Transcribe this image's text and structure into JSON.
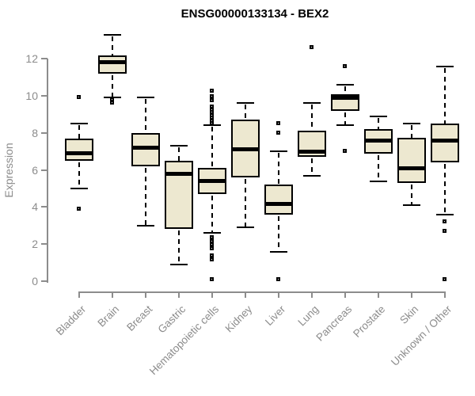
{
  "chart_data": {
    "type": "boxplot",
    "title": "ENSG00000133134 - BEX2",
    "xlabel": "",
    "ylabel": "Expression",
    "yticks": [
      0,
      2,
      4,
      6,
      8,
      10,
      12
    ],
    "ylim": [
      0,
      12
    ],
    "grid": false,
    "legend": "none",
    "marker": "open-square",
    "categories": [
      "Bladder",
      "Brain",
      "Breast",
      "Gastric",
      "Hematopoietic cells",
      "Kidney",
      "Liver",
      "Lung",
      "Pancreas",
      "Prostate",
      "Skin",
      "Unknown / Other"
    ],
    "boxes": [
      {
        "category": "Bladder",
        "whisker_low": 5.0,
        "q1": 6.5,
        "median": 6.9,
        "q3": 7.7,
        "whisker_high": 8.5,
        "outliers": [
          3.9,
          9.9
        ]
      },
      {
        "category": "Brain",
        "whisker_low": 9.9,
        "q1": 11.2,
        "median": 11.8,
        "q3": 12.2,
        "whisker_high": 13.3,
        "outliers": [
          9.6,
          9.8
        ]
      },
      {
        "category": "Breast",
        "whisker_low": 3.0,
        "q1": 6.2,
        "median": 7.2,
        "q3": 8.0,
        "whisker_high": 9.9,
        "outliers": []
      },
      {
        "category": "Gastric",
        "whisker_low": 0.9,
        "q1": 2.8,
        "median": 5.8,
        "q3": 6.5,
        "whisker_high": 7.3,
        "outliers": []
      },
      {
        "category": "Hematopoietic cells",
        "whisker_low": 2.6,
        "q1": 4.7,
        "median": 5.4,
        "q3": 6.1,
        "whisker_high": 8.4,
        "outliers": [
          10.25,
          9.95,
          9.75,
          9.4,
          9.25,
          9.1,
          8.95,
          8.8,
          8.65,
          8.5,
          2.35,
          2.15,
          1.95,
          1.75,
          1.35,
          1.15,
          0.1
        ]
      },
      {
        "category": "Kidney",
        "whisker_low": 2.9,
        "q1": 5.6,
        "median": 7.1,
        "q3": 8.7,
        "whisker_high": 9.6,
        "outliers": []
      },
      {
        "category": "Liver",
        "whisker_low": 1.6,
        "q1": 3.6,
        "median": 4.15,
        "q3": 5.2,
        "whisker_high": 7.0,
        "outliers": [
          8.5,
          8.0,
          0.1
        ]
      },
      {
        "category": "Lung",
        "whisker_low": 5.7,
        "q1": 6.7,
        "median": 7.0,
        "q3": 8.1,
        "whisker_high": 9.6,
        "outliers": [
          12.6
        ]
      },
      {
        "category": "Pancreas",
        "whisker_low": 8.4,
        "q1": 9.2,
        "median": 9.9,
        "q3": 10.1,
        "whisker_high": 10.6,
        "outliers": [
          11.6,
          7.0
        ]
      },
      {
        "category": "Prostate",
        "whisker_low": 5.4,
        "q1": 6.9,
        "median": 7.6,
        "q3": 8.2,
        "whisker_high": 8.9,
        "outliers": []
      },
      {
        "category": "Skin",
        "whisker_low": 4.1,
        "q1": 5.3,
        "median": 6.1,
        "q3": 7.75,
        "whisker_high": 8.5,
        "outliers": []
      },
      {
        "category": "Unknown / Other",
        "whisker_low": 3.6,
        "q1": 6.4,
        "median": 7.6,
        "q3": 8.5,
        "whisker_high": 11.6,
        "outliers": [
          3.2,
          2.7,
          0.1
        ]
      }
    ],
    "colors": {
      "box_fill": "#EDE8D0",
      "box_border": "#000000",
      "median": "#000000",
      "whisker": "#000000",
      "axis": "#8C8C8C",
      "tick_label": "#8C8C8C",
      "title": "#000000",
      "background": "#FFFFFF"
    }
  }
}
